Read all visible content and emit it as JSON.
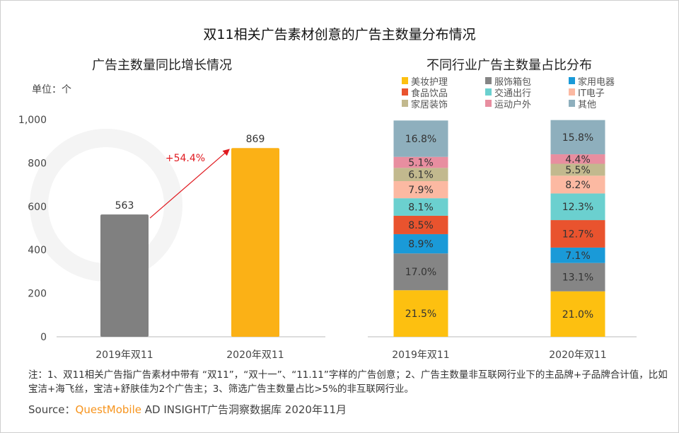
{
  "title": "双11相关广告素材创意的广告主数量分布情况",
  "watermark": "QUESTMOBILE",
  "note": "注：1、双11相关广告指广告素材中带有 “双11”，“双十一”、“11.11”字样的广告创意；2、广告主数量非互联网行业下的主品牌+子品牌合计值，比如宝洁+海飞丝，宝洁+舒肤佳为2个广告主；3、筛选广告主数量占比>5%的非互联网行业。",
  "source": {
    "prefix": "Source：",
    "brand": "QuestMobile",
    "rest": "AD INSIGHT广告洞察数据库 2020年11月"
  },
  "colors": {
    "gray_bar": "#808080",
    "orange_bar": "#fbb116",
    "arrow": "#e0191f"
  },
  "chart_data": [
    {
      "type": "bar",
      "title": "广告主数量同比增长情况",
      "unit_label": "单位：个",
      "categories": [
        "2019年双11",
        "2020年双11"
      ],
      "values": [
        563,
        869
      ],
      "value_labels": [
        "563",
        "869"
      ],
      "ylim": [
        0,
        1000
      ],
      "yticks": [
        0,
        200,
        400,
        600,
        800,
        1000
      ],
      "ytick_labels": [
        "0",
        "200",
        "400",
        "600",
        "800",
        "1,000"
      ],
      "annotation": "+54.4%",
      "grid": false
    },
    {
      "type": "bar",
      "stacked": true,
      "title": "不同行业广告主数量占比分布",
      "categories": [
        "2019年双11",
        "2020年双11"
      ],
      "legend_position": "top",
      "series": [
        {
          "name": "美妆护理",
          "color": "#fdc010",
          "values": [
            21.5,
            21.0
          ]
        },
        {
          "name": "服饰箱包",
          "color": "#858585",
          "values": [
            17.0,
            13.1
          ]
        },
        {
          "name": "家用电器",
          "color": "#1a9ad8",
          "values": [
            8.9,
            7.1
          ]
        },
        {
          "name": "食品饮品",
          "color": "#e9532e",
          "values": [
            8.5,
            12.7
          ]
        },
        {
          "name": "交通出行",
          "color": "#6bd0cf",
          "values": [
            8.1,
            12.3
          ]
        },
        {
          "name": "IT电子",
          "color": "#fcb9a2",
          "values": [
            7.9,
            8.2
          ]
        },
        {
          "name": "家居装饰",
          "color": "#c2b98e",
          "values": [
            6.1,
            5.5
          ]
        },
        {
          "name": "运动户外",
          "color": "#e88ea0",
          "values": [
            5.1,
            4.4
          ]
        },
        {
          "name": "其他",
          "color": "#8eafbd",
          "values": [
            16.8,
            15.8
          ]
        }
      ],
      "legend_order": [
        "美妆护理",
        "服饰箱包",
        "家用电器",
        "食品饮品",
        "交通出行",
        "IT电子",
        "家居装饰",
        "运动户外",
        "其他"
      ]
    }
  ]
}
